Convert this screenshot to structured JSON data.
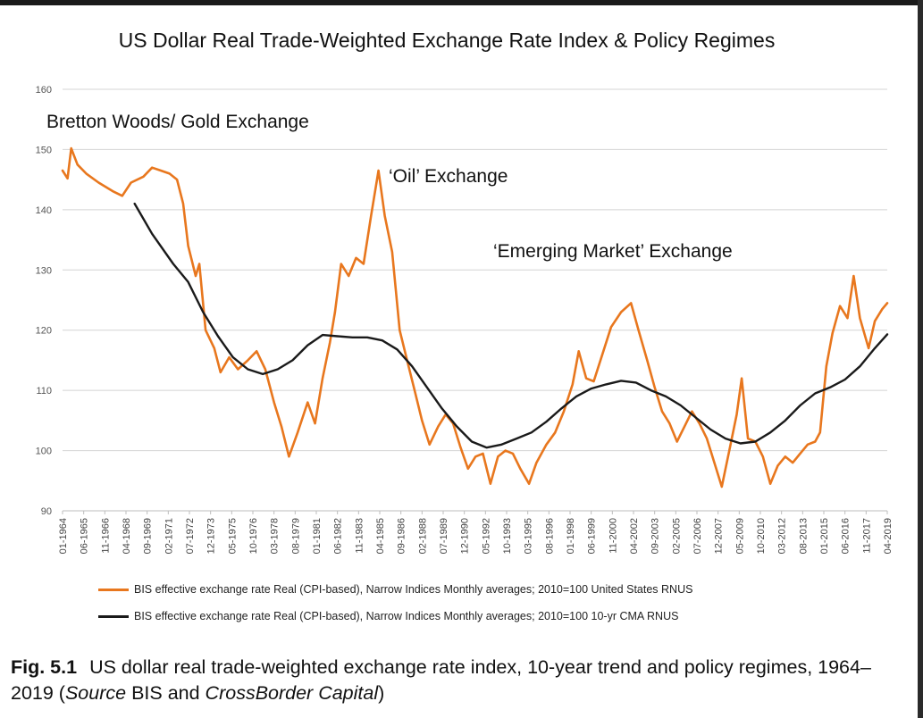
{
  "chart_data": {
    "type": "line",
    "title": "US Dollar Real Trade-Weighted Exchange Rate Index & Policy Regimes",
    "ylim": [
      90,
      160
    ],
    "yticks": [
      90,
      100,
      110,
      120,
      130,
      140,
      150,
      160
    ],
    "grid": true,
    "legend_position": "bottom",
    "x_start": "1964-01",
    "x_end": "2019-04",
    "x_tick_labels": [
      "01-1964",
      "06-1965",
      "11-1966",
      "04-1968",
      "09-1969",
      "02-1971",
      "07-1972",
      "12-1973",
      "05-1975",
      "10-1976",
      "03-1978",
      "08-1979",
      "01-1981",
      "06-1982",
      "11-1983",
      "04-1985",
      "09-1986",
      "02-1988",
      "07-1989",
      "12-1990",
      "05-1992",
      "10-1993",
      "03-1995",
      "08-1996",
      "01-1998",
      "06-1999",
      "11-2000",
      "04-2002",
      "09-2003",
      "02-2005",
      "07-2006",
      "12-2007",
      "05-2009",
      "10-2010",
      "03-2012",
      "08-2013",
      "01-2015",
      "06-2016",
      "11-2017",
      "04-2019"
    ],
    "annotations": [
      {
        "text": "Bretton Woods/ Gold Exchange"
      },
      {
        "text": "‘Oil’ Exchange"
      },
      {
        "text": "‘Emerging Market’ Exchange"
      }
    ],
    "series": [
      {
        "name": "BIS effective exchange rate Real (CPI-based), Narrow Indices Monthly averages; 2010=100 United States RNUS",
        "color": "#e8771e",
        "points": [
          [
            "1964-01",
            146.5
          ],
          [
            "1964-05",
            145.2
          ],
          [
            "1964-08",
            150.2
          ],
          [
            "1965-01",
            147.5
          ],
          [
            "1965-08",
            146.0
          ],
          [
            "1966-06",
            144.5
          ],
          [
            "1967-06",
            143.0
          ],
          [
            "1968-01",
            142.3
          ],
          [
            "1968-08",
            144.5
          ],
          [
            "1969-06",
            145.5
          ],
          [
            "1970-01",
            147.0
          ],
          [
            "1970-08",
            146.5
          ],
          [
            "1971-03",
            146.0
          ],
          [
            "1971-09",
            145.0
          ],
          [
            "1972-02",
            141.0
          ],
          [
            "1972-06",
            134.0
          ],
          [
            "1972-12",
            129.0
          ],
          [
            "1973-03",
            131.0
          ],
          [
            "1973-08",
            120.0
          ],
          [
            "1974-03",
            117.0
          ],
          [
            "1974-08",
            113.0
          ],
          [
            "1975-03",
            115.5
          ],
          [
            "1975-10",
            113.5
          ],
          [
            "1976-06",
            115.0
          ],
          [
            "1977-01",
            116.5
          ],
          [
            "1977-08",
            113.5
          ],
          [
            "1978-03",
            108.0
          ],
          [
            "1978-09",
            104.0
          ],
          [
            "1979-03",
            99.0
          ],
          [
            "1979-10",
            103.0
          ],
          [
            "1980-06",
            108.0
          ],
          [
            "1980-12",
            104.5
          ],
          [
            "1981-06",
            112.0
          ],
          [
            "1981-12",
            118.0
          ],
          [
            "1982-04",
            123.0
          ],
          [
            "1982-09",
            131.0
          ],
          [
            "1983-03",
            129.0
          ],
          [
            "1983-09",
            132.0
          ],
          [
            "1984-03",
            131.0
          ],
          [
            "1984-09",
            139.0
          ],
          [
            "1985-03",
            146.5
          ],
          [
            "1985-08",
            139.0
          ],
          [
            "1986-02",
            133.0
          ],
          [
            "1986-08",
            120.0
          ],
          [
            "1987-02",
            115.0
          ],
          [
            "1987-08",
            110.0
          ],
          [
            "1988-02",
            105.0
          ],
          [
            "1988-08",
            101.0
          ],
          [
            "1989-03",
            104.0
          ],
          [
            "1989-09",
            106.0
          ],
          [
            "1990-03",
            104.5
          ],
          [
            "1990-09",
            100.5
          ],
          [
            "1991-03",
            97.0
          ],
          [
            "1991-09",
            99.0
          ],
          [
            "1992-03",
            99.5
          ],
          [
            "1992-09",
            94.5
          ],
          [
            "1993-03",
            99.0
          ],
          [
            "1993-09",
            100.0
          ],
          [
            "1994-03",
            99.5
          ],
          [
            "1994-09",
            97.0
          ],
          [
            "1995-04",
            94.5
          ],
          [
            "1995-10",
            98.0
          ],
          [
            "1996-06",
            101.0
          ],
          [
            "1997-01",
            103.0
          ],
          [
            "1997-08",
            106.5
          ],
          [
            "1998-03",
            111.0
          ],
          [
            "1998-08",
            116.5
          ],
          [
            "1999-02",
            112.0
          ],
          [
            "1999-08",
            111.5
          ],
          [
            "2000-03",
            116.0
          ],
          [
            "2000-10",
            120.5
          ],
          [
            "2001-06",
            123.0
          ],
          [
            "2002-02",
            124.5
          ],
          [
            "2002-08",
            120.0
          ],
          [
            "2003-03",
            115.0
          ],
          [
            "2003-09",
            110.5
          ],
          [
            "2004-03",
            106.5
          ],
          [
            "2004-09",
            104.5
          ],
          [
            "2005-03",
            101.5
          ],
          [
            "2005-09",
            104.0
          ],
          [
            "2006-03",
            106.5
          ],
          [
            "2006-09",
            104.5
          ],
          [
            "2007-03",
            102.0
          ],
          [
            "2007-09",
            98.0
          ],
          [
            "2008-03",
            94.0
          ],
          [
            "2008-09",
            100.0
          ],
          [
            "2009-03",
            106.0
          ],
          [
            "2009-07",
            112.0
          ],
          [
            "2009-12",
            102.0
          ],
          [
            "2010-06",
            101.5
          ],
          [
            "2010-12",
            99.0
          ],
          [
            "2011-06",
            94.5
          ],
          [
            "2011-12",
            97.5
          ],
          [
            "2012-06",
            99.0
          ],
          [
            "2012-12",
            98.0
          ],
          [
            "2013-06",
            99.5
          ],
          [
            "2013-12",
            101.0
          ],
          [
            "2014-06",
            101.5
          ],
          [
            "2014-10",
            103.0
          ],
          [
            "2015-03",
            114.0
          ],
          [
            "2015-08",
            119.5
          ],
          [
            "2016-02",
            124.0
          ],
          [
            "2016-08",
            122.0
          ],
          [
            "2017-01",
            129.0
          ],
          [
            "2017-06",
            122.0
          ],
          [
            "2018-01",
            117.0
          ],
          [
            "2018-06",
            121.5
          ],
          [
            "2018-12",
            123.5
          ],
          [
            "2019-04",
            124.5
          ]
        ]
      },
      {
        "name": "BIS effective exchange rate Real (CPI-based), Narrow Indices Monthly averages; 2010=100 10-yr CMA RNUS",
        "color": "#1a1a1a",
        "points": [
          [
            "1968-11",
            141.0
          ],
          [
            "1970-01",
            136.0
          ],
          [
            "1971-06",
            131.0
          ],
          [
            "1972-06",
            128.0
          ],
          [
            "1973-06",
            123.0
          ],
          [
            "1974-06",
            119.0
          ],
          [
            "1975-06",
            115.5
          ],
          [
            "1976-06",
            113.5
          ],
          [
            "1977-06",
            112.7
          ],
          [
            "1978-06",
            113.5
          ],
          [
            "1979-06",
            115.0
          ],
          [
            "1980-06",
            117.5
          ],
          [
            "1981-06",
            119.2
          ],
          [
            "1982-06",
            119.0
          ],
          [
            "1983-06",
            118.8
          ],
          [
            "1984-06",
            118.8
          ],
          [
            "1985-06",
            118.3
          ],
          [
            "1986-06",
            116.8
          ],
          [
            "1987-06",
            114.0
          ],
          [
            "1988-06",
            110.5
          ],
          [
            "1989-06",
            107.0
          ],
          [
            "1990-06",
            104.0
          ],
          [
            "1991-06",
            101.5
          ],
          [
            "1992-06",
            100.5
          ],
          [
            "1993-06",
            101.0
          ],
          [
            "1994-06",
            102.0
          ],
          [
            "1995-06",
            103.0
          ],
          [
            "1996-06",
            104.8
          ],
          [
            "1997-06",
            107.0
          ],
          [
            "1998-06",
            109.0
          ],
          [
            "1999-06",
            110.3
          ],
          [
            "2000-06",
            111.0
          ],
          [
            "2001-06",
            111.6
          ],
          [
            "2002-06",
            111.3
          ],
          [
            "2003-06",
            110.0
          ],
          [
            "2004-06",
            109.0
          ],
          [
            "2005-06",
            107.5
          ],
          [
            "2006-06",
            105.5
          ],
          [
            "2007-06",
            103.5
          ],
          [
            "2008-06",
            102.0
          ],
          [
            "2009-06",
            101.2
          ],
          [
            "2010-06",
            101.5
          ],
          [
            "2011-06",
            103.0
          ],
          [
            "2012-06",
            105.0
          ],
          [
            "2013-06",
            107.5
          ],
          [
            "2014-06",
            109.5
          ],
          [
            "2015-06",
            110.5
          ],
          [
            "2016-06",
            111.8
          ],
          [
            "2017-06",
            114.0
          ],
          [
            "2018-06",
            117.0
          ],
          [
            "2019-04",
            119.3
          ]
        ]
      }
    ]
  },
  "caption": {
    "fig_label": "Fig. 5.1",
    "text_1": "US dollar real trade-weighted exchange rate index, 10-year trend and policy regimes, 1964–2019 (",
    "source_word": "Source",
    "text_2": " BIS and ",
    "source_name": "CrossBorder Capital",
    "text_3": ")"
  }
}
